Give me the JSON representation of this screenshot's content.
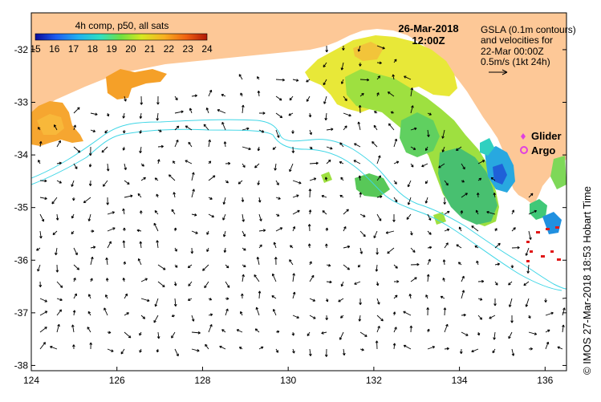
{
  "map": {
    "lon_range": [
      124,
      136.5
    ],
    "lat_range": [
      -38.1,
      -31.3
    ],
    "x_ticks": [
      "124",
      "126",
      "128",
      "130",
      "132",
      "134",
      "136"
    ],
    "y_ticks": [
      "-32",
      "-33",
      "-34",
      "-35",
      "-36",
      "-37",
      "-38"
    ],
    "land_color": "#fdc897",
    "sea_color": "#ffffff",
    "contour_color": "#3fd6e6"
  },
  "colorbar": {
    "title": "4h comp, p50, all sats",
    "labels": [
      "15",
      "16",
      "17",
      "18",
      "19",
      "20",
      "21",
      "22",
      "23",
      "24"
    ]
  },
  "timestamp": {
    "date": "26-Mar-2018",
    "time": "12:00Z"
  },
  "info": {
    "line1": "GSLA (0.1m contours)",
    "line2": "and velocities for",
    "line3": "22-Mar 00:00Z",
    "line4": "0.5m/s (1kt 24h)"
  },
  "legend": {
    "glider": "Glider",
    "argo": "Argo",
    "glider_color": "#e040e0",
    "argo_color": "#e040e0"
  },
  "credit": "© IMOS 27-Mar-2018 18:53 Hobart Time"
}
